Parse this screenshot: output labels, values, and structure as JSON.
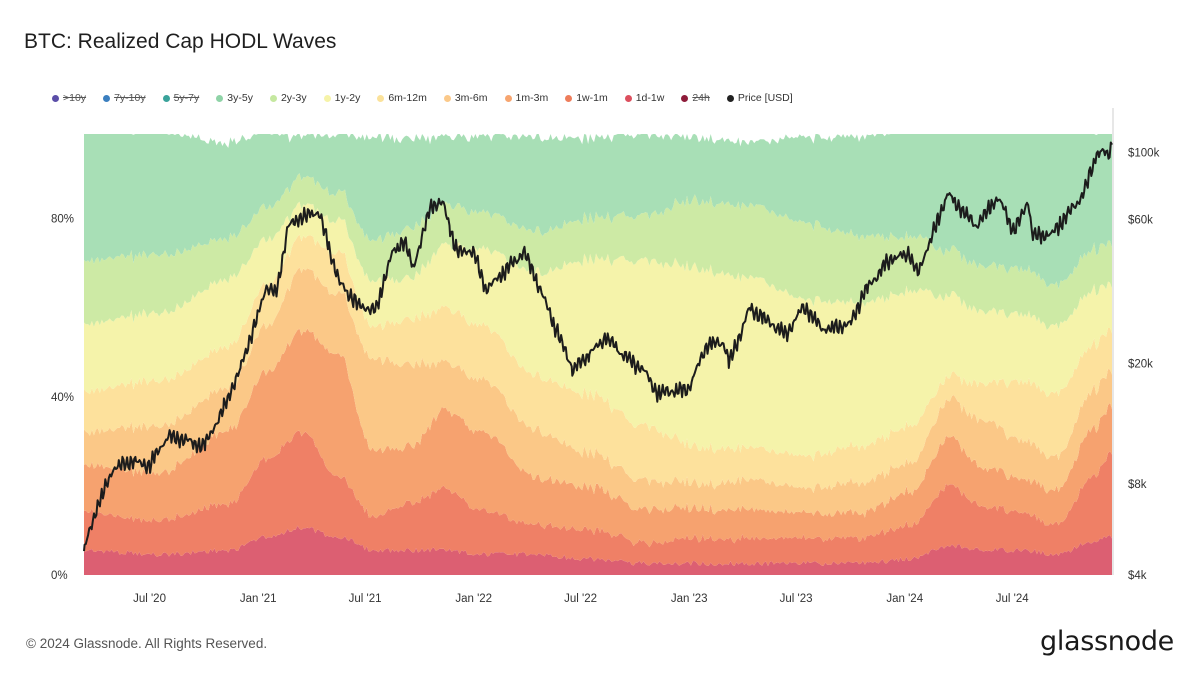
{
  "title": "BTC: Realized Cap HODL Waves",
  "footer": "© 2024 Glassnode. All Rights Reserved.",
  "brand": "glassnode",
  "legend": [
    {
      "label": ">10y",
      "color": "#5b4ea8",
      "struck": true
    },
    {
      "label": "7y-10y",
      "color": "#3b7fbf",
      "struck": true
    },
    {
      "label": "5y-7y",
      "color": "#3aa39b",
      "struck": true
    },
    {
      "label": "3y-5y",
      "color": "#8fd3a7",
      "struck": false
    },
    {
      "label": "2y-3y",
      "color": "#c5e8a0",
      "struck": false
    },
    {
      "label": "1y-2y",
      "color": "#f6f3a8",
      "struck": false
    },
    {
      "label": "6m-12m",
      "color": "#fbe29a",
      "struck": false
    },
    {
      "label": "3m-6m",
      "color": "#fbc98a",
      "struck": false
    },
    {
      "label": "1m-3m",
      "color": "#f7a56f",
      "struck": false
    },
    {
      "label": "1w-1m",
      "color": "#ee7d5b",
      "struck": false
    },
    {
      "label": "1d-1w",
      "color": "#dc4f5e",
      "struck": false
    },
    {
      "label": "24h",
      "color": "#8e1c3a",
      "struck": true
    },
    {
      "label": "Price [USD]",
      "color": "#222222",
      "struck": false
    }
  ],
  "chart_data": {
    "type": "area",
    "stacked": true,
    "x_dates": [
      "2020-03",
      "2020-07",
      "2020-11",
      "2021-01",
      "2021-03",
      "2021-05",
      "2021-07",
      "2021-09",
      "2021-11",
      "2022-01",
      "2022-04",
      "2022-07",
      "2022-10",
      "2023-01",
      "2023-04",
      "2023-07",
      "2023-10",
      "2024-01",
      "2024-03",
      "2024-05",
      "2024-07",
      "2024-09",
      "2024-11",
      "2024-12"
    ],
    "x_ticks": [
      "Jul '20",
      "Jan '21",
      "Jul '21",
      "Jan '22",
      "Jul '22",
      "Jan '23",
      "Jul '23",
      "Jan '24",
      "Jul '24"
    ],
    "y_left_ticks": [
      "0%",
      "40%",
      "80%"
    ],
    "y_left_range": [
      0,
      0.99
    ],
    "y_right_ticks": [
      "$4k",
      "$8k",
      "$20k",
      "$60k",
      "$100k"
    ],
    "y_right_scale": "log",
    "y_right_range": [
      4000,
      115000
    ],
    "series": [
      {
        "name": "1d-1w",
        "color": "#dc5f72",
        "values": [
          0.05,
          0.04,
          0.05,
          0.08,
          0.1,
          0.08,
          0.05,
          0.05,
          0.05,
          0.04,
          0.04,
          0.03,
          0.02,
          0.02,
          0.02,
          0.02,
          0.02,
          0.03,
          0.06,
          0.05,
          0.05,
          0.04,
          0.07,
          0.08
        ]
      },
      {
        "name": "1w-1m",
        "color": "#ef8066",
        "values": [
          0.08,
          0.07,
          0.1,
          0.17,
          0.21,
          0.13,
          0.07,
          0.1,
          0.13,
          0.09,
          0.06,
          0.06,
          0.04,
          0.05,
          0.05,
          0.05,
          0.05,
          0.07,
          0.13,
          0.09,
          0.08,
          0.06,
          0.14,
          0.18
        ]
      },
      {
        "name": "1m-3m",
        "color": "#f6a26f",
        "values": [
          0.1,
          0.1,
          0.16,
          0.19,
          0.22,
          0.27,
          0.14,
          0.12,
          0.17,
          0.17,
          0.1,
          0.09,
          0.07,
          0.06,
          0.06,
          0.05,
          0.05,
          0.07,
          0.1,
          0.08,
          0.07,
          0.07,
          0.1,
          0.1
        ]
      },
      {
        "name": "3m-6m",
        "color": "#fbc887",
        "values": [
          0.07,
          0.1,
          0.09,
          0.1,
          0.13,
          0.13,
          0.2,
          0.18,
          0.1,
          0.11,
          0.1,
          0.07,
          0.06,
          0.05,
          0.06,
          0.05,
          0.06,
          0.06,
          0.08,
          0.1,
          0.08,
          0.07,
          0.08,
          0.07
        ]
      },
      {
        "name": "6m-12m",
        "color": "#fde19c",
        "values": [
          0.09,
          0.1,
          0.09,
          0.09,
          0.07,
          0.09,
          0.07,
          0.1,
          0.12,
          0.12,
          0.12,
          0.13,
          0.12,
          0.08,
          0.07,
          0.07,
          0.08,
          0.08,
          0.05,
          0.08,
          0.13,
          0.14,
          0.1,
          0.09
        ]
      },
      {
        "name": "1y-2y",
        "color": "#f5f3aa",
        "values": [
          0.15,
          0.15,
          0.15,
          0.1,
          0.07,
          0.07,
          0.1,
          0.09,
          0.14,
          0.17,
          0.23,
          0.3,
          0.37,
          0.4,
          0.38,
          0.35,
          0.32,
          0.3,
          0.18,
          0.16,
          0.15,
          0.15,
          0.12,
          0.1
        ]
      },
      {
        "name": "2y-3y",
        "color": "#cdeaa5",
        "values": [
          0.14,
          0.13,
          0.09,
          0.07,
          0.06,
          0.06,
          0.09,
          0.11,
          0.09,
          0.08,
          0.09,
          0.09,
          0.1,
          0.15,
          0.16,
          0.17,
          0.15,
          0.12,
          0.1,
          0.1,
          0.1,
          0.09,
          0.09,
          0.09
        ]
      },
      {
        "name": "3y-5y",
        "color": "#a8dfb6",
        "values": [
          0.3,
          0.28,
          0.21,
          0.17,
          0.09,
          0.13,
          0.23,
          0.2,
          0.15,
          0.17,
          0.21,
          0.18,
          0.18,
          0.14,
          0.14,
          0.19,
          0.22,
          0.25,
          0.28,
          0.31,
          0.32,
          0.35,
          0.27,
          0.26
        ]
      }
    ],
    "price_usd": [
      [
        "2020-03-12",
        4800
      ],
      [
        "2020-04-01",
        6500
      ],
      [
        "2020-05-01",
        9000
      ],
      [
        "2020-06-01",
        9500
      ],
      [
        "2020-07-01",
        9200
      ],
      [
        "2020-08-01",
        11500
      ],
      [
        "2020-09-01",
        11200
      ],
      [
        "2020-10-01",
        10600
      ],
      [
        "2020-11-01",
        13800
      ],
      [
        "2020-12-01",
        19000
      ],
      [
        "2021-01-01",
        29000
      ],
      [
        "2021-01-15",
        36000
      ],
      [
        "2021-02-01",
        34000
      ],
      [
        "2021-02-21",
        57000
      ],
      [
        "2021-03-13",
        61000
      ],
      [
        "2021-04-14",
        63500
      ],
      [
        "2021-05-19",
        37000
      ],
      [
        "2021-06-22",
        31000
      ],
      [
        "2021-07-20",
        30000
      ],
      [
        "2021-08-15",
        46000
      ],
      [
        "2021-09-06",
        51000
      ],
      [
        "2021-09-21",
        41000
      ],
      [
        "2021-10-20",
        66000
      ],
      [
        "2021-11-10",
        68000
      ],
      [
        "2021-12-04",
        47000
      ],
      [
        "2022-01-01",
        47000
      ],
      [
        "2022-01-22",
        35000
      ],
      [
        "2022-03-28",
        47000
      ],
      [
        "2022-05-12",
        29000
      ],
      [
        "2022-06-18",
        19000
      ],
      [
        "2022-08-14",
        24500
      ],
      [
        "2022-09-10",
        21500
      ],
      [
        "2022-10-15",
        19200
      ],
      [
        "2022-11-09",
        16000
      ],
      [
        "2022-12-31",
        16500
      ],
      [
        "2023-01-31",
        23000
      ],
      [
        "2023-02-28",
        23500
      ],
      [
        "2023-03-10",
        20000
      ],
      [
        "2023-04-14",
        30500
      ],
      [
        "2023-06-15",
        25000
      ],
      [
        "2023-07-14",
        31000
      ],
      [
        "2023-08-17",
        26000
      ],
      [
        "2023-10-01",
        27000
      ],
      [
        "2023-10-25",
        34500
      ],
      [
        "2023-12-05",
        44000
      ],
      [
        "2024-01-10",
        46500
      ],
      [
        "2024-01-23",
        39500
      ],
      [
        "2024-03-14",
        73000
      ],
      [
        "2024-05-01",
        57000
      ],
      [
        "2024-06-07",
        71000
      ],
      [
        "2024-07-05",
        55000
      ],
      [
        "2024-07-29",
        69000
      ],
      [
        "2024-08-05",
        53000
      ],
      [
        "2024-09-06",
        53500
      ],
      [
        "2024-10-29",
        72000
      ],
      [
        "2024-11-22",
        99000
      ],
      [
        "2024-12-05",
        100000
      ],
      [
        "2024-12-10",
        97000
      ],
      [
        "2024-12-17",
        106000
      ]
    ]
  }
}
